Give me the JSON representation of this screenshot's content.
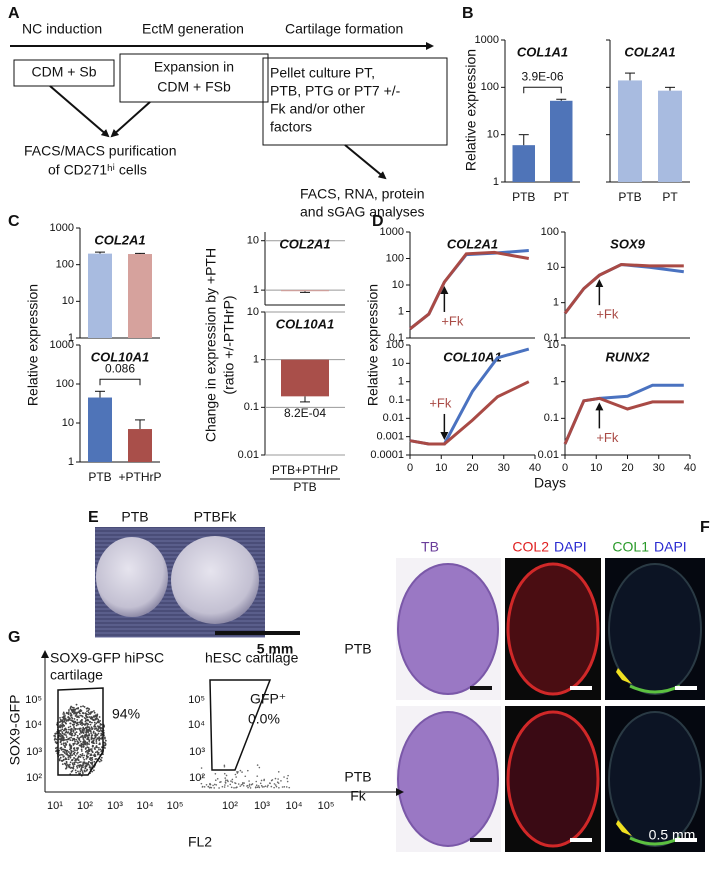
{
  "panel_labels": [
    "A",
    "B",
    "C",
    "D",
    "E",
    "F",
    "G"
  ],
  "panel_a": {
    "stages": [
      "NC induction",
      "EctM generation",
      "Cartilage formation"
    ],
    "boxes": [
      [
        "CDM + Sb"
      ],
      [
        "Expansion in",
        "CDM + FSb"
      ],
      [
        "Pellet culture  PT,",
        "PTB, PTG or PT7 +/-",
        "Fk and/or other",
        "factors"
      ]
    ],
    "purification": [
      "FACS/MACS purification",
      "of CD271ʰⁱ cells"
    ],
    "analyses": [
      "FACS, RNA, protein",
      "and sGAG analyses"
    ]
  },
  "panel_b": {
    "ylabel": "Relative expression"
  },
  "panel_c": {
    "ylabel": "Relative expression",
    "ratio_ylabel": [
      "Change in expression by +PTH",
      "(ratio +/-PTHrP)"
    ]
  },
  "panel_d": {
    "ylabel": "Relative expression",
    "xlabel": "Days"
  },
  "chart_data": [
    {
      "type": "bar",
      "log": true,
      "title": "COL1A1",
      "categories": [
        "PTB",
        "PT"
      ],
      "values": [
        6,
        52
      ],
      "errors": [
        4,
        4
      ],
      "colors": [
        "#4f74b8",
        "#4f74b8"
      ],
      "ylim": [
        1,
        1000
      ],
      "yticks": [
        1,
        10,
        100,
        1000
      ],
      "annotation": "3.9E-06"
    },
    {
      "type": "bar",
      "log": true,
      "title": "COL2A1",
      "categories": [
        "PTB",
        "PT"
      ],
      "values": [
        140,
        85
      ],
      "errors": [
        60,
        15
      ],
      "colors": [
        "#a8bbe0",
        "#a8bbe0"
      ],
      "ylim": [
        1,
        1000
      ],
      "yticks": [
        1,
        10,
        100,
        1000
      ],
      "tick_labels": false
    },
    {
      "type": "bar",
      "log": true,
      "title": "COL2A1",
      "values": [
        200,
        195
      ],
      "errors": [
        20,
        8
      ],
      "colors": [
        "#a8bbe0",
        "#d6a29d"
      ],
      "ylim": [
        1,
        1000
      ],
      "yticks": [
        1,
        10,
        100,
        1000
      ]
    },
    {
      "type": "bar",
      "log": true,
      "title": "COL10A1",
      "categories": [
        "PTB",
        "+PTHrP"
      ],
      "values": [
        45,
        7
      ],
      "errors": [
        20,
        5
      ],
      "colors": [
        "#4f74b8",
        "#a94f4a"
      ],
      "ylim": [
        1,
        1000
      ],
      "yticks": [
        1,
        10,
        100,
        1000
      ],
      "annotation": "0.086"
    },
    {
      "type": "bar",
      "log": true,
      "title": "COL2A1",
      "values": [
        0.95
      ],
      "errors": [
        0.05
      ],
      "colors": [
        "#d6a29d"
      ],
      "ylim": [
        0.5,
        15
      ],
      "yticks": [
        1,
        10
      ],
      "grid": true,
      "baseline": 1
    },
    {
      "type": "bar",
      "log": true,
      "title": "COL10A1",
      "categories": [
        "PTB+PTHrP"
      ],
      "group_label": "PTB",
      "values": [
        0.17
      ],
      "errors": [
        0.04
      ],
      "colors": [
        "#a94f4a"
      ],
      "ylim": [
        0.01,
        10
      ],
      "yticks": [
        0.01,
        0.1,
        1,
        10
      ],
      "grid": true,
      "baseline": 1,
      "annotation": "8.2E-04"
    },
    {
      "type": "line",
      "log": true,
      "title": "COL2A1",
      "x": [
        0,
        6,
        11,
        18,
        27,
        38
      ],
      "xlim": [
        0,
        40
      ],
      "ylim": [
        0.1,
        1000
      ],
      "yticks": [
        0.1,
        1,
        10,
        100,
        1000
      ],
      "annotation": "+Fk",
      "series": [
        {
          "color": "#4a72c0",
          "values": [
            0.22,
            0.8,
            13,
            140,
            160,
            200
          ]
        },
        {
          "color": "#a94a45",
          "values": [
            0.22,
            0.8,
            13,
            150,
            170,
            100
          ]
        }
      ]
    },
    {
      "type": "line",
      "log": true,
      "title": "SOX9",
      "x": [
        0,
        6,
        11,
        18,
        27,
        38
      ],
      "xlim": [
        0,
        40
      ],
      "ylim": [
        0.1,
        100
      ],
      "yticks": [
        0.1,
        1,
        10,
        100
      ],
      "annotation": "+Fk",
      "series": [
        {
          "color": "#4a72c0",
          "values": [
            0.5,
            2.5,
            6,
            12,
            10,
            7.5
          ]
        },
        {
          "color": "#a94a45",
          "values": [
            0.5,
            2.5,
            6,
            12,
            11,
            11
          ]
        }
      ]
    },
    {
      "type": "line",
      "log": true,
      "title": "COL10A1",
      "x": [
        0,
        6,
        11,
        20,
        28,
        38
      ],
      "xlim": [
        0,
        40
      ],
      "xticks": [
        0,
        10,
        20,
        30,
        40
      ],
      "ylim": [
        0.0001,
        100
      ],
      "yticks": [
        0.0001,
        0.001,
        0.01,
        0.1,
        1,
        10,
        100
      ],
      "annotation": "+Fk",
      "series": [
        {
          "color": "#4a72c0",
          "values": [
            0.0006,
            0.0004,
            0.0004,
            0.3,
            20,
            60
          ]
        },
        {
          "color": "#a94a45",
          "values": [
            0.0006,
            0.0004,
            0.0004,
            0.008,
            0.15,
            1
          ]
        }
      ]
    },
    {
      "type": "line",
      "log": true,
      "title": "RUNX2",
      "x": [
        0,
        6,
        11,
        20,
        28,
        38
      ],
      "xlim": [
        0,
        40
      ],
      "xticks": [
        0,
        10,
        20,
        30,
        40
      ],
      "ylim": [
        0.01,
        10
      ],
      "yticks": [
        0.01,
        0.1,
        1,
        10
      ],
      "annotation": "+Fk",
      "series": [
        {
          "color": "#4a72c0",
          "values": [
            0.02,
            0.3,
            0.35,
            0.4,
            0.8,
            0.8
          ]
        },
        {
          "color": "#a94a45",
          "values": [
            0.02,
            0.3,
            0.35,
            0.18,
            0.28,
            0.28
          ]
        }
      ]
    }
  ],
  "panel_e": {
    "labels": [
      "PTB",
      "PTBFk"
    ],
    "scale": "5 mm"
  },
  "panel_f": {
    "headers": [
      "TB",
      "COL2",
      "DAPI",
      "COL1",
      "DAPI"
    ],
    "rows": [
      [
        "PTB"
      ],
      [
        "PTB",
        "Fk"
      ]
    ],
    "scale": "0.5 mm"
  },
  "panel_g": {
    "titles": [
      [
        "SOX9-GFP hiPSC",
        "cartilage"
      ],
      [
        "hESC cartilage"
      ]
    ],
    "gates": [
      [
        "94%"
      ],
      [
        "GFP⁺",
        "0.0%"
      ]
    ],
    "ylabel": "SOX9-GFP",
    "xlabel": "FL2",
    "x_ticks": [
      "10¹",
      "10²",
      "10³",
      "10⁴",
      "10⁵"
    ],
    "y_ticks": [
      "10²",
      "10³",
      "10⁴",
      "10⁵"
    ]
  }
}
